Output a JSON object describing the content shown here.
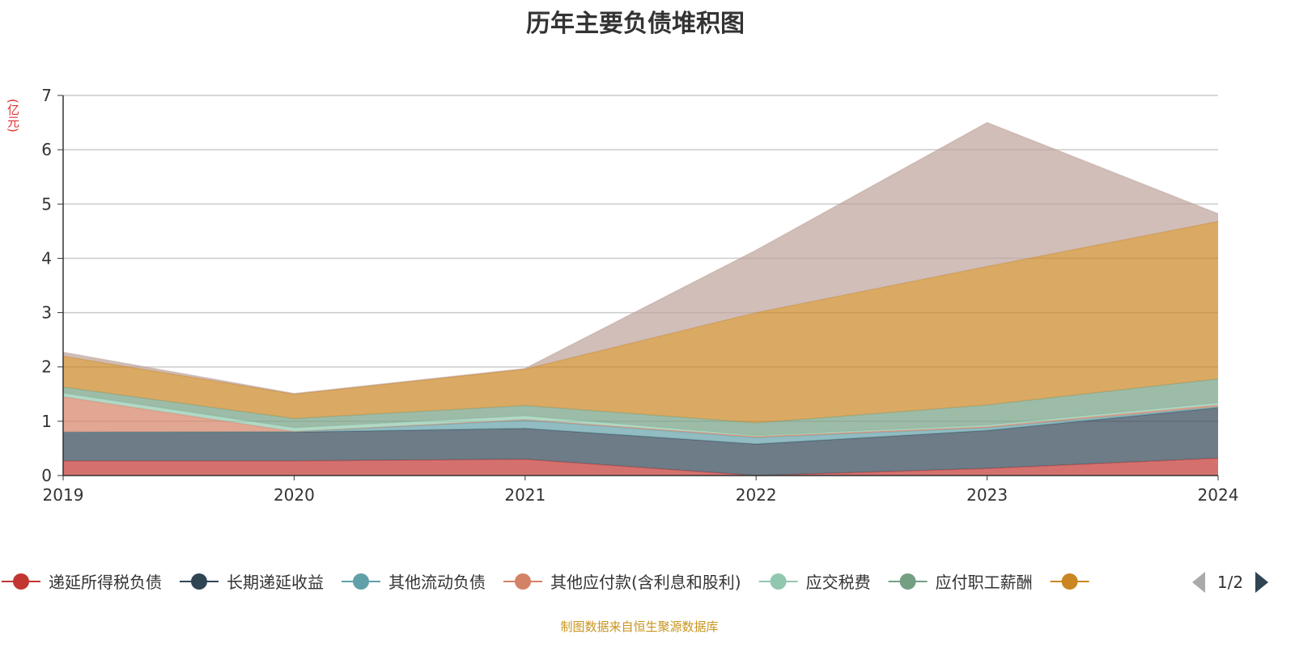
{
  "chart_data": {
    "type": "area",
    "stacked": true,
    "title": "历年主要负债堆积图",
    "ylabel": "(亿元)",
    "xlabel": "",
    "ylim": [
      0,
      7
    ],
    "yticks": [
      0,
      1,
      2,
      3,
      4,
      5,
      6,
      7
    ],
    "grid": true,
    "categories": [
      "2019",
      "2020",
      "2021",
      "2022",
      "2023",
      "2024"
    ],
    "series": [
      {
        "name": "递延所得税负债",
        "color": "#c23531",
        "values": [
          0.27,
          0.27,
          0.3,
          0.0,
          0.13,
          0.32
        ]
      },
      {
        "name": "长期递延收益",
        "color": "#2f4554",
        "values": [
          0.53,
          0.53,
          0.57,
          0.58,
          0.7,
          0.93
        ]
      },
      {
        "name": "其他流动负债",
        "color": "#61a0a8",
        "values": [
          0.0,
          0.01,
          0.15,
          0.12,
          0.05,
          0.02
        ]
      },
      {
        "name": "其他应付款(含利息和股利)",
        "color": "#d48265",
        "values": [
          0.65,
          0.0,
          0.01,
          0.02,
          0.02,
          0.03
        ]
      },
      {
        "name": "应交税费",
        "color": "#91c7ae",
        "values": [
          0.07,
          0.07,
          0.07,
          0.02,
          0.03,
          0.04
        ]
      },
      {
        "name": "应付职工薪酬",
        "color": "#749f83",
        "values": [
          0.11,
          0.17,
          0.19,
          0.23,
          0.37,
          0.44
        ]
      },
      {
        "name": "",
        "color": "#ca8622",
        "values": [
          0.57,
          0.45,
          0.67,
          2.03,
          2.55,
          2.9
        ]
      },
      {
        "name": "",
        "color": "#bda29a",
        "values": [
          0.07,
          0.01,
          0.01,
          1.15,
          2.65,
          0.14
        ]
      }
    ],
    "legend": {
      "placement": "bottom",
      "page": "1/2"
    }
  },
  "source": "制图数据来自恒生聚源数据库"
}
